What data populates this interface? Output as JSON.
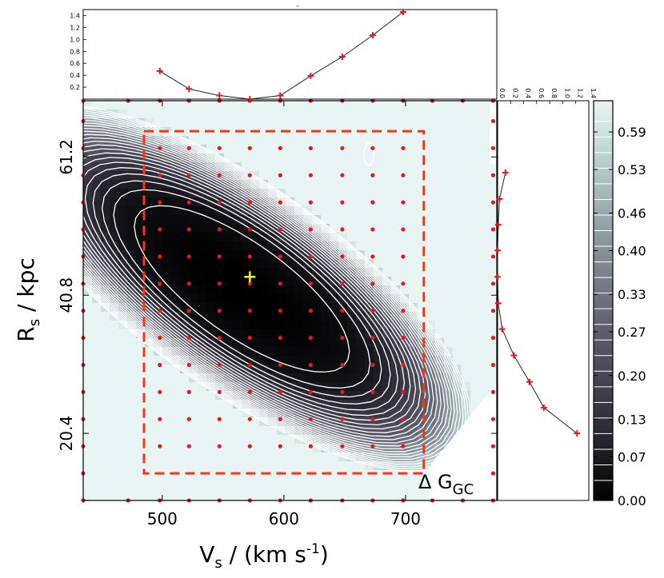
{
  "chart_data": {
    "type": "heatmap",
    "title": "",
    "xlabel": "V",
    "xlabel_sub": "s",
    "xlabel_tail": " / (km s",
    "xlabel_sup": "-1",
    "xlabel_close": ")",
    "ylabel": "R",
    "ylabel_sub": "s",
    "ylabel_tail": " / kpc",
    "annotation": "Δ G",
    "annotation_sub": "GC",
    "xlim": [
      435,
      775
    ],
    "ylim": [
      10.5,
      69.5
    ],
    "x_ticks": [
      "500",
      "600",
      "700"
    ],
    "x_tick_values": [
      500,
      600,
      700
    ],
    "y_ticks": [
      "20.4",
      "40.8",
      "61.2"
    ],
    "y_tick_values": [
      20.4,
      40.8,
      61.2
    ],
    "best_fit": {
      "vs": 572,
      "rs": 43.5
    },
    "grid_region": {
      "x": [
        485,
        715
      ],
      "y": [
        14.5,
        65.0
      ]
    },
    "grid_vs": [
      435,
      472,
      498,
      522,
      547,
      572,
      597,
      622,
      648,
      673,
      698,
      722,
      747,
      772
    ],
    "grid_rs": [
      10.5,
      14.5,
      18.5,
      22.5,
      26.5,
      30.5,
      34.5,
      38.5,
      42.5,
      46.5,
      50.5,
      54.5,
      58.5,
      62.5,
      66.5,
      69.5
    ],
    "top_panel": {
      "ylim": [
        0,
        1.5
      ],
      "y_ticks": [
        "0.2",
        "0.4",
        "0.6",
        "0.8",
        "1.0",
        "1.2",
        "1.4"
      ],
      "y_tick_values": [
        0.2,
        0.4,
        0.6,
        0.8,
        1.0,
        1.2,
        1.4
      ],
      "top_tick_label": "-",
      "x": [
        498,
        522,
        547,
        572,
        597,
        622,
        648,
        673,
        698
      ],
      "y": [
        0.47,
        0.17,
        0.06,
        0.0,
        0.06,
        0.39,
        0.71,
        1.07,
        1.46
      ]
    },
    "right_panel": {
      "xlim": [
        0,
        1.4
      ],
      "x_ticks": [
        "0.0",
        "0.2",
        "0.4",
        "0.6",
        "0.8",
        "1.0",
        "1.2",
        "1.4"
      ],
      "x_tick_values": [
        0.0,
        0.2,
        0.4,
        0.6,
        0.8,
        1.0,
        1.2,
        1.4
      ],
      "r": [
        20.4,
        24.2,
        28.0,
        31.9,
        35.8,
        39.6,
        43.5,
        47.4,
        51.2,
        55.0,
        58.9
      ],
      "delta": [
        1.22,
        0.71,
        0.49,
        0.25,
        0.07,
        0.01,
        0.0,
        0.0,
        0.01,
        0.03,
        0.12
      ]
    },
    "colorbar": {
      "ticks": [
        "0.00",
        "0.07",
        "0.13",
        "0.20",
        "0.27",
        "0.33",
        "0.40",
        "0.46",
        "0.53",
        "0.59"
      ],
      "tick_values": [
        0.0,
        0.07,
        0.13,
        0.2,
        0.27,
        0.33,
        0.4,
        0.46,
        0.53,
        0.59
      ],
      "max": 0.64,
      "colors": [
        "#000000",
        "#2e2b38",
        "#5e5b6e",
        "#8c9aa1",
        "#b9d2d2",
        "#e9f4f4"
      ]
    },
    "colors": {
      "points": "#e31a1c",
      "dashed_box": "#ee3a16",
      "best_fit": "#ffff00",
      "contour": "#ffffff",
      "profile_line": "#222222"
    }
  }
}
